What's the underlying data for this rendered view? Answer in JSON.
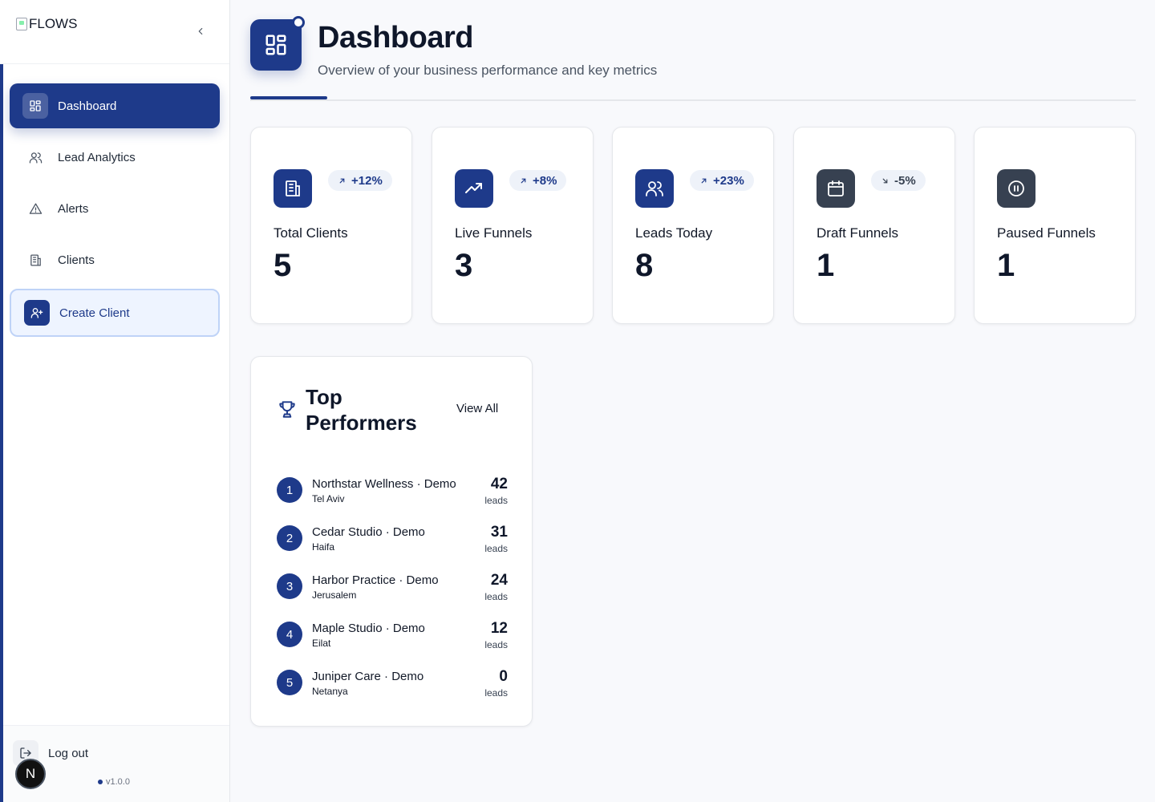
{
  "sidebar": {
    "logo_text": "FLOWS",
    "nav": [
      {
        "label": "Dashboard",
        "icon": "dashboard-icon",
        "active": true
      },
      {
        "label": "Lead Analytics",
        "icon": "users-icon"
      },
      {
        "label": "Alerts",
        "icon": "alert-triangle-icon"
      },
      {
        "label": "Clients",
        "icon": "building-icon"
      }
    ],
    "create_label": "Create Client",
    "logout_label": "Log out",
    "avatar_initial": "N",
    "version": "v1.0.0"
  },
  "header": {
    "title": "Dashboard",
    "subtitle": "Overview of your business performance and key metrics"
  },
  "stats": [
    {
      "label": "Total Clients",
      "value": "5",
      "trend": "+12%",
      "trend_dir": "up",
      "icon": "building-icon",
      "color": "#1e3a8a",
      "trend_color": "#1e3a8a"
    },
    {
      "label": "Live Funnels",
      "value": "3",
      "trend": "+8%",
      "trend_dir": "up",
      "icon": "trending-up-icon",
      "color": "#1e3a8a",
      "trend_color": "#1e3a8a"
    },
    {
      "label": "Leads Today",
      "value": "8",
      "trend": "+23%",
      "trend_dir": "up",
      "icon": "users-icon",
      "color": "#1e3a8a",
      "trend_color": "#1e3a8a"
    },
    {
      "label": "Draft Funnels",
      "value": "1",
      "trend": "-5%",
      "trend_dir": "down",
      "icon": "calendar-icon",
      "color": "#374151",
      "trend_color": "#374151"
    },
    {
      "label": "Paused Funnels",
      "value": "1",
      "trend": "",
      "icon": "pause-circle-icon",
      "color": "#374151"
    }
  ],
  "top_performers": {
    "title": "Top Performers",
    "view_all": "View All",
    "unit": "leads",
    "rows": [
      {
        "rank": "1",
        "name": "Northstar Wellness · Demo",
        "city": "Tel Aviv",
        "leads": "42"
      },
      {
        "rank": "2",
        "name": "Cedar Studio · Demo",
        "city": "Haifa",
        "leads": "31"
      },
      {
        "rank": "3",
        "name": "Harbor Practice · Demo",
        "city": "Jerusalem",
        "leads": "24"
      },
      {
        "rank": "4",
        "name": "Maple Studio · Demo",
        "city": "Eilat",
        "leads": "12"
      },
      {
        "rank": "5",
        "name": "Juniper Care · Demo",
        "city": "Netanya",
        "leads": "0"
      }
    ]
  },
  "colors": {
    "brand": "#1e3a8a",
    "accent_light": "#eef4ff",
    "muted_dark": "#374151"
  }
}
